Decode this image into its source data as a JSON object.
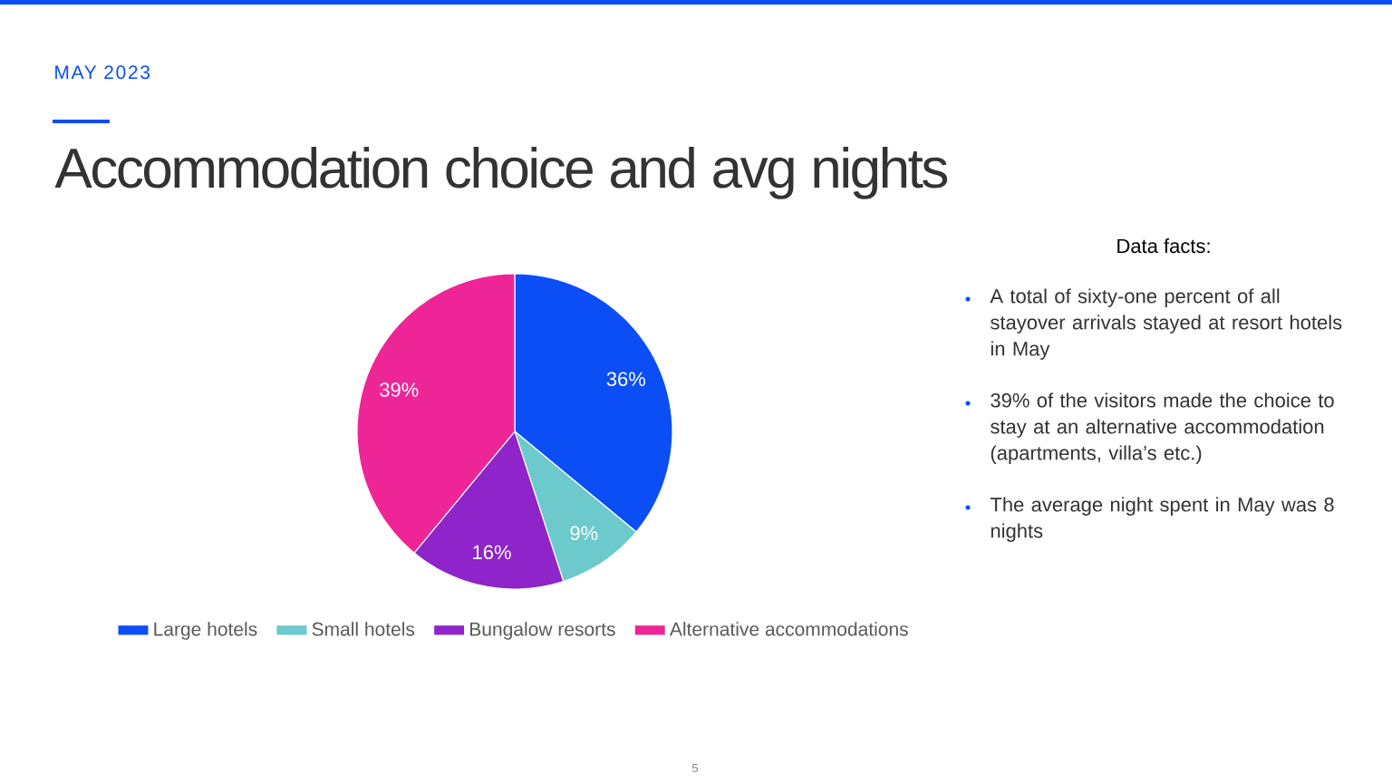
{
  "chart_data": {
    "type": "pie",
    "title": "Accommodation choice and avg nights",
    "subtitle": "MAY 2023",
    "categories": [
      "Large hotels",
      "Small hotels",
      "Bungalow resorts",
      "Alternative accommodations"
    ],
    "values": [
      36,
      9,
      16,
      39
    ],
    "value_labels": [
      "36%",
      "9%",
      "16%",
      "39%"
    ],
    "colors": [
      "#0c4ef5",
      "#6cc9cc",
      "#8e24c9",
      "#ee2596"
    ],
    "legend": "bottom",
    "annotations": [
      "Data facts:",
      "A total of sixty-one percent of all stayover arrivals stayed at resort hotels in May",
      "39% of the visitors made the choice to stay at an alternative accommodation (apartments, villa’s etc.)",
      "The average night spent in May was 8 nights",
      "5"
    ]
  }
}
